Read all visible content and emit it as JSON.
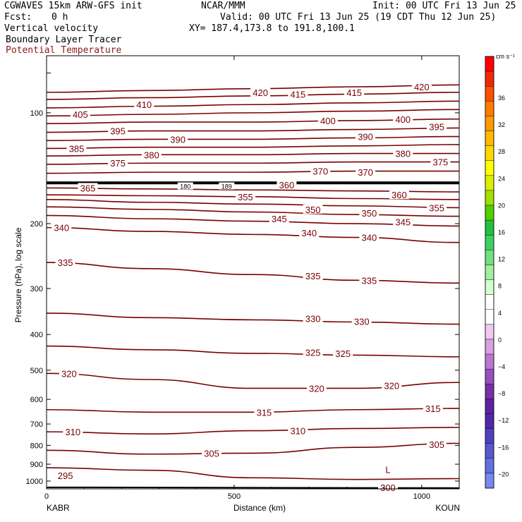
{
  "header": {
    "model": "CGWAVES 15km ARW-GFS init",
    "org": "NCAR/MMM",
    "init": "Init: 00 UTC Fri 13 Jun 25",
    "fcst_label": "Fcst:",
    "fcst_value": "0 h",
    "valid": "Valid: 00 UTC Fri 13 Jun 25 (19 CDT Thu 12 Jun 25)",
    "field1": "Vertical velocity",
    "xy": "XY= 187.4,173.8 to 191.8,100.1",
    "field2": "Boundary Layer Tracer",
    "field3": "Potential Temperature"
  },
  "colorbar": {
    "unit": "cm s⁻¹",
    "labels": [
      "36",
      "32",
      "28",
      "24",
      "20",
      "16",
      "12",
      "8",
      "4",
      "0",
      "−4",
      "−8",
      "−12",
      "−16",
      "−20"
    ],
    "colors": [
      "#ff0000",
      "#f02a00",
      "#ff5000",
      "#ff7a00",
      "#ff9a00",
      "#ffb800",
      "#ffd800",
      "#ffff00",
      "#d8f000",
      "#a0e000",
      "#50d000",
      "#20c040",
      "#40d060",
      "#70e080",
      "#a0f0a0",
      "#d0ffd0",
      "#ffffff",
      "#ffffff",
      "#f0c8f0",
      "#d8a0e0",
      "#b878d0",
      "#9850c0",
      "#7830a8",
      "#6020a0",
      "#5028a8",
      "#5040c0",
      "#5858d0",
      "#6070e0",
      "#7888f0"
    ]
  },
  "chart_data": {
    "type": "contour",
    "title": "Potential Temperature",
    "xlabel": "Distance (km)",
    "ylabel": "Pressure (hPa), log scale",
    "xlim": [
      0,
      1100
    ],
    "ylim": [
      1050,
      70
    ],
    "yscale": "log",
    "x_ticks": [
      "0",
      "500",
      "1000"
    ],
    "x_tick_values": [
      0,
      500,
      1000
    ],
    "y_ticks": [
      "100",
      "200",
      "300",
      "400",
      "500",
      "600",
      "700",
      "800",
      "900",
      "1000"
    ],
    "y_tick_values": [
      100,
      200,
      300,
      400,
      500,
      600,
      700,
      800,
      900,
      1000
    ],
    "left_endpoint": "KABR",
    "right_endpoint": "KOUN",
    "tropopause_pressure_hpa": 155,
    "contour_interval_K": 5,
    "contours": [
      {
        "theta": 420,
        "p": [
          88,
          87,
          86,
          85,
          84
        ]
      },
      {
        "theta": 415,
        "p": [
          92,
          91,
          90,
          89,
          88
        ]
      },
      {
        "theta": 410,
        "p": [
          97,
          96,
          95,
          94,
          93
        ]
      },
      {
        "theta": 405,
        "p": [
          102,
          101,
          100,
          99,
          98
        ]
      },
      {
        "theta": 400,
        "p": [
          107,
          106,
          106,
          105,
          104
        ]
      },
      {
        "theta": 395,
        "p": [
          113,
          112,
          112,
          111,
          110
        ]
      },
      {
        "theta": 390,
        "p": [
          119,
          118,
          118,
          117,
          116
        ]
      },
      {
        "theta": 385,
        "p": [
          125,
          124,
          124,
          123,
          122
        ]
      },
      {
        "theta": 380,
        "p": [
          131,
          130,
          130,
          129,
          129
        ]
      },
      {
        "theta": 375,
        "p": [
          138,
          137,
          137,
          136,
          136
        ]
      },
      {
        "theta": 370,
        "p": [
          146,
          145,
          145,
          144,
          144
        ]
      },
      {
        "theta": 365,
        "p": [
          160,
          161,
          162,
          163,
          164
        ]
      },
      {
        "theta": 360,
        "p": [
          167,
          168,
          169,
          171,
          172
        ]
      },
      {
        "theta": 355,
        "p": [
          172,
          175,
          177,
          179,
          181
        ]
      },
      {
        "theta": 350,
        "p": [
          180,
          183,
          186,
          189,
          191
        ]
      },
      {
        "theta": 345,
        "p": [
          190,
          194,
          197,
          200,
          203
        ]
      },
      {
        "theta": 340,
        "p": [
          205,
          210,
          214,
          218,
          225
        ]
      },
      {
        "theta": 335,
        "p": [
          255,
          265,
          275,
          285,
          290
        ]
      },
      {
        "theta": 330,
        "p": [
          350,
          360,
          365,
          370,
          375
        ]
      },
      {
        "theta": 325,
        "p": [
          430,
          440,
          450,
          455,
          460
        ]
      },
      {
        "theta": 320,
        "p": [
          510,
          530,
          560,
          560,
          540
        ]
      },
      {
        "theta": 315,
        "p": [
          640,
          650,
          650,
          640,
          635
        ]
      },
      {
        "theta": 310,
        "p": [
          735,
          745,
          730,
          720,
          715
        ]
      },
      {
        "theta": 305,
        "p": [
          825,
          845,
          840,
          810,
          790
        ]
      },
      {
        "theta": 300,
        "p": [
          920,
          935,
          980,
          990,
          985
        ]
      }
    ],
    "contour_labels": [
      {
        "text": "420",
        "x": 570,
        "p": 88
      },
      {
        "text": "415",
        "x": 670,
        "p": 89
      },
      {
        "text": "415",
        "x": 820,
        "p": 88
      },
      {
        "text": "420",
        "x": 1000,
        "p": 85
      },
      {
        "text": "410",
        "x": 260,
        "p": 95
      },
      {
        "text": "405",
        "x": 90,
        "p": 101
      },
      {
        "text": "400",
        "x": 750,
        "p": 105
      },
      {
        "text": "400",
        "x": 950,
        "p": 104
      },
      {
        "text": "395",
        "x": 190,
        "p": 112
      },
      {
        "text": "395",
        "x": 1040,
        "p": 109
      },
      {
        "text": "390",
        "x": 350,
        "p": 118
      },
      {
        "text": "390",
        "x": 850,
        "p": 116
      },
      {
        "text": "385",
        "x": 80,
        "p": 125
      },
      {
        "text": "380",
        "x": 280,
        "p": 130
      },
      {
        "text": "380",
        "x": 950,
        "p": 129
      },
      {
        "text": "375",
        "x": 190,
        "p": 137
      },
      {
        "text": "375",
        "x": 1050,
        "p": 136
      },
      {
        "text": "370",
        "x": 730,
        "p": 144
      },
      {
        "text": "370",
        "x": 850,
        "p": 145
      },
      {
        "text": "365",
        "x": 110,
        "p": 160
      },
      {
        "text": "360",
        "x": 640,
        "p": 157
      },
      {
        "text": "360",
        "x": 940,
        "p": 167
      },
      {
        "text": "355",
        "x": 530,
        "p": 169
      },
      {
        "text": "355",
        "x": 1040,
        "p": 181
      },
      {
        "text": "350",
        "x": 710,
        "p": 183
      },
      {
        "text": "350",
        "x": 860,
        "p": 187
      },
      {
        "text": "345",
        "x": 620,
        "p": 194
      },
      {
        "text": "345",
        "x": 950,
        "p": 198
      },
      {
        "text": "340",
        "x": 40,
        "p": 205
      },
      {
        "text": "340",
        "x": 700,
        "p": 212
      },
      {
        "text": "340",
        "x": 860,
        "p": 218
      },
      {
        "text": "335",
        "x": 50,
        "p": 255
      },
      {
        "text": "335",
        "x": 710,
        "p": 277
      },
      {
        "text": "335",
        "x": 860,
        "p": 285
      },
      {
        "text": "330",
        "x": 710,
        "p": 362
      },
      {
        "text": "330",
        "x": 840,
        "p": 368
      },
      {
        "text": "325",
        "x": 710,
        "p": 447
      },
      {
        "text": "325",
        "x": 790,
        "p": 450
      },
      {
        "text": "320",
        "x": 60,
        "p": 510
      },
      {
        "text": "320",
        "x": 720,
        "p": 560
      },
      {
        "text": "320",
        "x": 920,
        "p": 550
      },
      {
        "text": "315",
        "x": 580,
        "p": 650
      },
      {
        "text": "315",
        "x": 1030,
        "p": 635
      },
      {
        "text": "310",
        "x": 70,
        "p": 735
      },
      {
        "text": "310",
        "x": 670,
        "p": 730
      },
      {
        "text": "305",
        "x": 440,
        "p": 840
      },
      {
        "text": "305",
        "x": 1040,
        "p": 795
      },
      {
        "text": "295",
        "x": 50,
        "p": 965
      },
      {
        "text": "L",
        "x": 910,
        "p": 930
      },
      {
        "text": "300",
        "x": 910,
        "p": 1040
      }
    ],
    "tracer_labels": [
      {
        "text": "180",
        "x": 370,
        "p": 158
      },
      {
        "text": "189",
        "x": 480,
        "p": 158
      }
    ]
  }
}
